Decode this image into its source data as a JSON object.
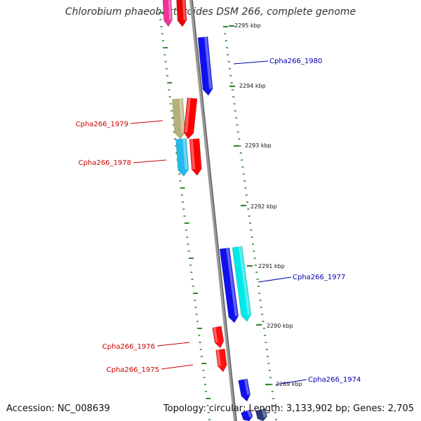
{
  "title": "Chlorobium phaeobacteroides DSM 266, complete genome",
  "footer": {
    "accession": "Accession: NC_008639",
    "topology": "Topology: circular; Length: 3,133,902 bp; Genes: 2,705"
  },
  "colors": {
    "backbone": "#8a8a8a",
    "tick": "#2e8b2e",
    "forward_label": "#0000aa",
    "reverse_label": "#cc0000"
  },
  "ticks": [
    {
      "label": "2295 kbp"
    },
    {
      "label": "2294 kbp"
    },
    {
      "label": "2293 kbp"
    },
    {
      "label": "2292 kbp"
    },
    {
      "label": "2291 kbp"
    },
    {
      "label": "2290 kbp"
    },
    {
      "label": "2289 kbp"
    }
  ],
  "genes": [
    {
      "name": "Cpha266_1980",
      "strand": "forward",
      "color": "#0000ee"
    },
    {
      "name": "Cpha266_1979",
      "strand": "reverse",
      "color": "#ff0000"
    },
    {
      "name": "Cpha266_1978",
      "strand": "reverse",
      "color": "#ff0000"
    },
    {
      "name": "Cpha266_1977",
      "strand": "forward",
      "color": "#00e5e5"
    },
    {
      "name": "Cpha266_1976",
      "strand": "reverse",
      "color": "#ff0000"
    },
    {
      "name": "Cpha266_1975",
      "strand": "reverse",
      "color": "#ff0000"
    },
    {
      "name": "Cpha266_1974",
      "strand": "forward",
      "color": "#0000ee"
    }
  ]
}
